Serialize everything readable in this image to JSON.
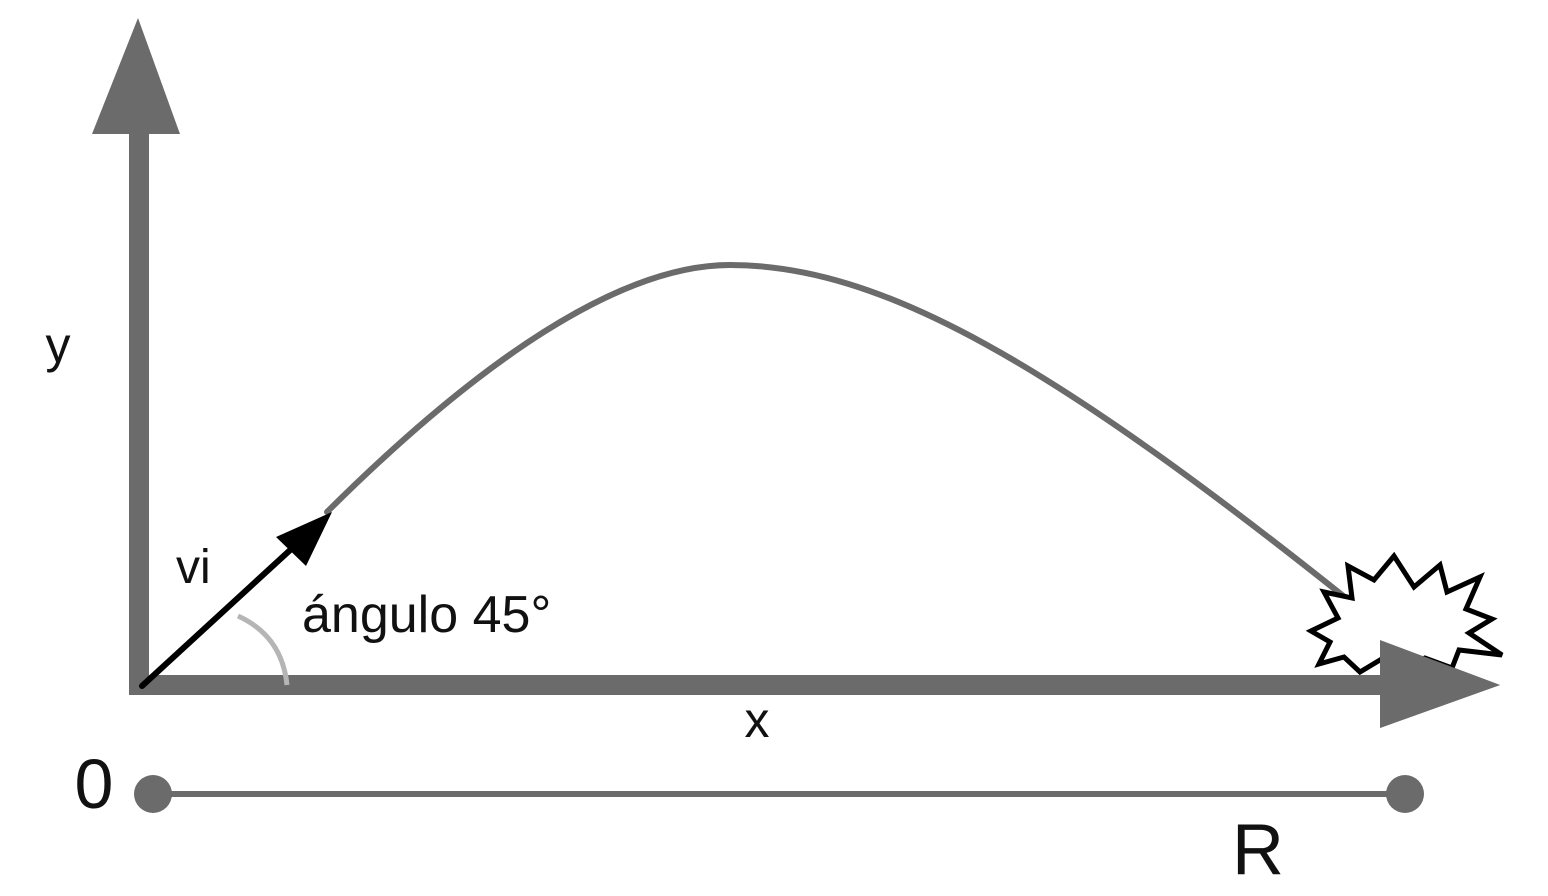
{
  "diagram": {
    "labels": {
      "y_axis": "y",
      "x_axis": "x",
      "velocity": "vi",
      "angle": "ángulo 45°",
      "origin": "0",
      "range": "R"
    },
    "colors": {
      "axis": "#6b6b6b",
      "trajectory": "#6b6b6b",
      "velocity_vector": "#000000",
      "angle_arc": "#b5b5b5",
      "impact_burst": "#000000",
      "text": "#111111"
    },
    "icons": {
      "impact": "explosion-burst-icon"
    }
  }
}
